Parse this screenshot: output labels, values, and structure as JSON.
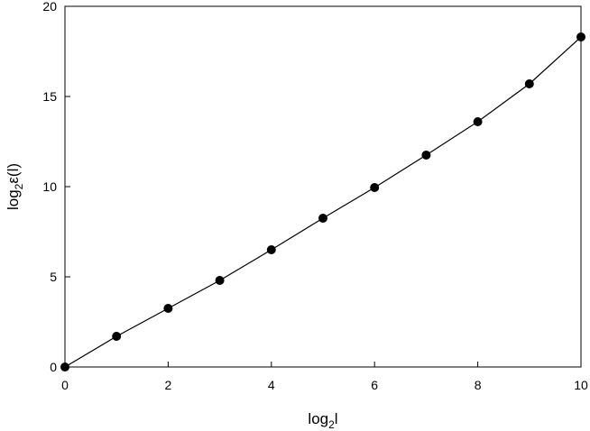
{
  "chart_data": {
    "type": "line",
    "xlabel": "log",
    "xlabel_sub": "2",
    "xlabel_suffix": "l",
    "ylabel": "log",
    "ylabel_sub": "2",
    "ylabel_suffix": "ε(l)",
    "xlim": [
      0,
      10
    ],
    "ylim": [
      0,
      20
    ],
    "xticks": [
      0,
      2,
      4,
      6,
      8,
      10
    ],
    "yticks": [
      0,
      5,
      10,
      15,
      20
    ],
    "grid": false,
    "legend": "none",
    "markers": "filled-circle",
    "color": "#000000",
    "series": [
      {
        "x": [
          0,
          1,
          2,
          3,
          4,
          5,
          6,
          7,
          8,
          9,
          10
        ],
        "y": [
          0,
          1.7,
          3.25,
          4.8,
          6.5,
          8.25,
          9.95,
          11.75,
          13.6,
          15.7,
          18.3
        ]
      }
    ]
  }
}
